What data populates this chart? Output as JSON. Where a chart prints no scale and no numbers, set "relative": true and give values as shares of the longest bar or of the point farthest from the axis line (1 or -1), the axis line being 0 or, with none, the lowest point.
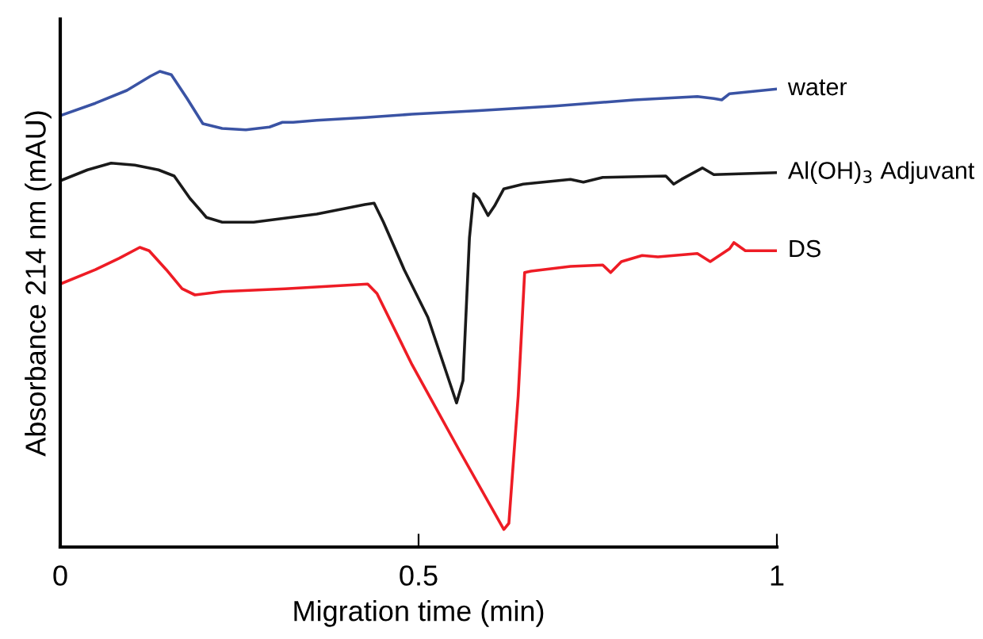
{
  "chart_data": {
    "type": "line",
    "relative": true,
    "xlabel": "Migration time (min)",
    "ylabel": "Absorbance 214 nm (mAU)",
    "xlim": [
      0,
      1
    ],
    "xticks": [
      0,
      0.5,
      1
    ],
    "grid": false,
    "legend": false,
    "marker": "none",
    "line_style": "solid",
    "series": [
      {
        "name": "water",
        "color": "#3a53a4",
        "x": [
          0,
          0.049,
          0.093,
          0.126,
          0.139,
          0.155,
          0.177,
          0.199,
          0.226,
          0.259,
          0.292,
          0.31,
          0.325,
          0.358,
          0.425,
          0.491,
          0.58,
          0.69,
          0.801,
          0.889,
          0.912,
          0.923,
          0.934,
          1
        ],
        "values": [
          0.907,
          0.933,
          0.96,
          0.99,
          1,
          0.993,
          0.943,
          0.89,
          0.88,
          0.877,
          0.883,
          0.893,
          0.893,
          0.897,
          0.903,
          0.91,
          0.917,
          0.927,
          0.94,
          0.947,
          0.943,
          0.94,
          0.953,
          0.963
        ]
      },
      {
        "name": "Al(OH)$_{3}$ Adjuvant",
        "color": "#1a1a1a",
        "x": [
          0,
          0.038,
          0.071,
          0.104,
          0.137,
          0.159,
          0.181,
          0.204,
          0.226,
          0.27,
          0.358,
          0.425,
          0.438,
          0.451,
          0.48,
          0.513,
          0.553,
          0.562,
          0.571,
          0.577,
          0.584,
          0.597,
          0.606,
          0.619,
          0.646,
          0.712,
          0.73,
          0.757,
          0.845,
          0.856,
          0.867,
          0.896,
          0.912,
          1
        ],
        "values": [
          0.77,
          0.793,
          0.807,
          0.803,
          0.793,
          0.78,
          0.733,
          0.693,
          0.683,
          0.683,
          0.7,
          0.72,
          0.723,
          0.683,
          0.583,
          0.483,
          0.303,
          0.35,
          0.65,
          0.743,
          0.733,
          0.697,
          0.717,
          0.753,
          0.763,
          0.773,
          0.767,
          0.777,
          0.78,
          0.763,
          0.773,
          0.797,
          0.783,
          0.787
        ]
      },
      {
        "name": "DS",
        "color": "#ee1c25",
        "x": [
          0,
          0.049,
          0.082,
          0.111,
          0.124,
          0.148,
          0.17,
          0.188,
          0.226,
          0.314,
          0.429,
          0.442,
          0.491,
          0.558,
          0.619,
          0.626,
          0.639,
          0.648,
          0.657,
          0.712,
          0.757,
          0.768,
          0.783,
          0.812,
          0.834,
          0.889,
          0.907,
          0.934,
          0.94,
          0.956,
          1
        ],
        "values": [
          0.553,
          0.583,
          0.607,
          0.63,
          0.623,
          0.583,
          0.543,
          0.53,
          0.537,
          0.543,
          0.553,
          0.533,
          0.383,
          0.2,
          0.037,
          0.05,
          0.317,
          0.577,
          0.58,
          0.59,
          0.593,
          0.577,
          0.6,
          0.613,
          0.61,
          0.617,
          0.6,
          0.627,
          0.64,
          0.623,
          0.623
        ]
      }
    ]
  }
}
